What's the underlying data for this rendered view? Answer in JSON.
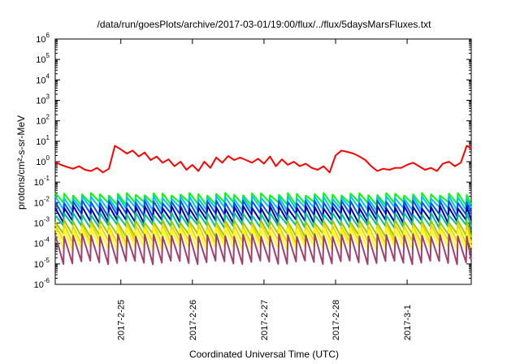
{
  "chart_data": {
    "type": "line",
    "title": "/data/run/goesPlots/archive/2017-03-01/19:00/flux/../flux/5daysMarsFluxes.txt",
    "xlabel": "Coordinated Universal Time (UTC)",
    "ylabel": "protons/cm²-s-sr-MeV",
    "yscale": "log",
    "ylim": [
      1e-06,
      1000000.0
    ],
    "ytick_labels": [
      {
        "base": "10",
        "exp": "-6",
        "value": 1e-06
      },
      {
        "base": "10",
        "exp": "-5",
        "value": 1e-05
      },
      {
        "base": "10",
        "exp": "-4",
        "value": 0.0001
      },
      {
        "base": "10",
        "exp": "-3",
        "value": 0.001
      },
      {
        "base": "10",
        "exp": "-2",
        "value": 0.01
      },
      {
        "base": "10",
        "exp": "-1",
        "value": 0.1
      },
      {
        "base": "10",
        "exp": "0",
        "value": 1
      },
      {
        "base": "10",
        "exp": "1",
        "value": 10
      },
      {
        "base": "10",
        "exp": "2",
        "value": 100
      },
      {
        "base": "10",
        "exp": "3",
        "value": 1000
      },
      {
        "base": "10",
        "exp": "4",
        "value": 10000
      },
      {
        "base": "10",
        "exp": "5",
        "value": 100000
      },
      {
        "base": "10",
        "exp": "6",
        "value": 1000000
      }
    ],
    "xlim": [
      "2017-02-24 02:00",
      "2017-03-01 21:30"
    ],
    "x_ticks": [
      {
        "label": "2017-2-25",
        "value": "2017-02-25 00:00"
      },
      {
        "label": "2017-2-26",
        "value": "2017-02-26 00:00"
      },
      {
        "label": "2017-2-27",
        "value": "2017-02-27 00:00"
      },
      {
        "label": "2017-2-28",
        "value": "2017-02-28 00:00"
      },
      {
        "label": "2017-3-1",
        "value": "2017-03-01 00:00"
      }
    ],
    "grid": false,
    "series_points_x": [
      "2017-02-24 02:00",
      "2017-02-24 04:00",
      "2017-02-24 06:00",
      "2017-02-24 08:00",
      "2017-02-24 10:00",
      "2017-02-24 12:00",
      "2017-02-24 14:00",
      "2017-02-24 16:00",
      "2017-02-24 18:00",
      "2017-02-24 20:00",
      "2017-02-24 22:00",
      "2017-02-25 00:00",
      "2017-02-25 02:00",
      "2017-02-25 04:00",
      "2017-02-25 06:00",
      "2017-02-25 08:00",
      "2017-02-25 10:00",
      "2017-02-25 12:00",
      "2017-02-25 14:00",
      "2017-02-25 16:00",
      "2017-02-25 18:00",
      "2017-02-25 20:00",
      "2017-02-25 22:00",
      "2017-02-26 00:00",
      "2017-02-26 02:00",
      "2017-02-26 04:00",
      "2017-02-26 06:00",
      "2017-02-26 08:00",
      "2017-02-26 10:00",
      "2017-02-26 12:00",
      "2017-02-26 14:00",
      "2017-02-26 16:00",
      "2017-02-26 18:00",
      "2017-02-26 20:00",
      "2017-02-26 22:00",
      "2017-02-27 00:00",
      "2017-02-27 02:00",
      "2017-02-27 04:00",
      "2017-02-27 06:00",
      "2017-02-27 08:00",
      "2017-02-27 10:00",
      "2017-02-27 12:00",
      "2017-02-27 14:00",
      "2017-02-27 16:00",
      "2017-02-27 18:00",
      "2017-02-27 20:00",
      "2017-02-27 22:00",
      "2017-02-28 00:00",
      "2017-02-28 02:00",
      "2017-02-28 04:00",
      "2017-02-28 06:00",
      "2017-02-28 08:00",
      "2017-02-28 10:00",
      "2017-02-28 12:00",
      "2017-02-28 14:00",
      "2017-02-28 16:00",
      "2017-02-28 18:00",
      "2017-02-28 20:00",
      "2017-02-28 22:00",
      "2017-03-01 00:00",
      "2017-03-01 02:00",
      "2017-03-01 04:00",
      "2017-03-01 06:00",
      "2017-03-01 08:00",
      "2017-03-01 10:00",
      "2017-03-01 12:00",
      "2017-03-01 14:00",
      "2017-03-01 16:00",
      "2017-03-01 18:00",
      "2017-03-01 20:00",
      "2017-03-01 21:30"
    ],
    "series": [
      {
        "color": "#ff0000",
        "values": [
          0.95,
          0.7,
          0.55,
          0.45,
          0.6,
          0.4,
          0.35,
          0.5,
          0.3,
          0.45,
          6,
          4,
          2.5,
          3.5,
          1.8,
          2.8,
          1.2,
          1.8,
          0.9,
          1.3,
          0.6,
          1.0,
          0.4,
          0.7,
          0.35,
          1.0,
          0.5,
          1.6,
          0.9,
          1.9,
          1.2,
          1.6,
          1.2,
          0.9,
          1.4,
          0.8,
          1.8,
          0.6,
          1.3,
          0.7,
          1.0,
          0.6,
          0.8,
          0.5,
          0.4,
          0.6,
          0.3,
          2,
          3.5,
          3,
          2.5,
          1.8,
          1.2,
          0.6,
          0.35,
          0.45,
          0.4,
          0.5,
          0.5,
          0.7,
          0.9,
          0.6,
          0.4,
          0.5,
          0.35,
          0.8,
          1.0,
          0.6,
          0.9,
          6,
          4.5
        ]
      },
      {
        "color": "#00ff00",
        "cycles": {
          "high": 0.026,
          "low": 0.009
        }
      },
      {
        "color": "#00c0ff",
        "cycles": {
          "high": 0.018,
          "low": 0.005
        }
      },
      {
        "color": "#0050ff",
        "cycles": {
          "high": 0.011,
          "low": 0.0025
        }
      },
      {
        "color": "#0000aa",
        "cycles": {
          "high": 0.006,
          "low": 0.0012
        }
      },
      {
        "color": "#00c090",
        "cycles": {
          "high": 0.0028,
          "low": 0.0007
        }
      },
      {
        "color": "#90d000",
        "cycles": {
          "high": 0.0012,
          "low": 0.00025
        }
      },
      {
        "color": "#ffd000",
        "cycles": {
          "high": 0.0008,
          "low": 0.00012
        }
      },
      {
        "color": "#ffff00",
        "cycles": {
          "high": 0.0005,
          "low": 6e-05
        }
      },
      {
        "color": "#a04070",
        "cycles": {
          "high": 0.00025,
          "low": 1.2e-05
        }
      }
    ]
  }
}
